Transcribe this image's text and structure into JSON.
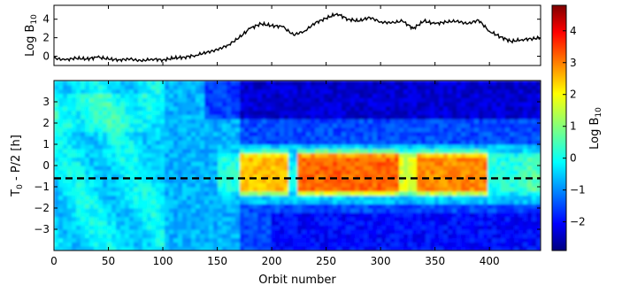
{
  "chart_data": [
    {
      "type": "line",
      "panel": "top",
      "ylabel": "Log B",
      "ylabel_subscript": "10",
      "xlim": [
        0,
        447
      ],
      "ylim": [
        -1,
        5.5
      ],
      "yticks": [
        0,
        2,
        4
      ],
      "ytick_labels": [
        "0",
        "2",
        "4"
      ],
      "color": "#000000",
      "series": [
        {
          "x": [
            0,
            10,
            20,
            30,
            40,
            50,
            60,
            70,
            80,
            90,
            100,
            110,
            120,
            130,
            140,
            150,
            160,
            170,
            180,
            190,
            200,
            210,
            220,
            230,
            240,
            250,
            260,
            270,
            280,
            290,
            300,
            310,
            320,
            330,
            340,
            350,
            360,
            370,
            380,
            390,
            400,
            410,
            420,
            430,
            440,
            447
          ],
          "values": [
            -0.2,
            -0.4,
            -0.2,
            -0.3,
            -0.1,
            -0.3,
            -0.4,
            -0.3,
            -0.5,
            -0.3,
            -0.4,
            -0.2,
            -0.1,
            0.1,
            0.4,
            0.7,
            1.2,
            2.0,
            3.0,
            3.5,
            3.3,
            3.2,
            2.3,
            2.7,
            3.6,
            4.1,
            4.6,
            4.0,
            3.8,
            4.2,
            3.7,
            3.6,
            3.8,
            3.0,
            3.8,
            3.5,
            3.7,
            3.8,
            3.5,
            3.9,
            2.7,
            2.1,
            1.6,
            1.8,
            1.9,
            2.0
          ]
        }
      ]
    },
    {
      "type": "heatmap",
      "panel": "bottom",
      "xlabel": "Orbit number",
      "ylabel": "T",
      "ylabel_subscript": "0",
      "ylabel_suffix": " - P/2 [h]",
      "xlim": [
        0,
        447
      ],
      "ylim": [
        -4,
        4
      ],
      "xticks": [
        0,
        50,
        100,
        150,
        200,
        250,
        300,
        350,
        400
      ],
      "xtick_labels": [
        "0",
        "50",
        "100",
        "150",
        "200",
        "250",
        "300",
        "350",
        "400"
      ],
      "yticks": [
        3,
        2,
        1,
        0,
        -1,
        -2,
        -3
      ],
      "ytick_labels": [
        "3",
        "2",
        "1",
        "0",
        "−1",
        "−2",
        "−3"
      ],
      "reference_line": {
        "y": -0.6,
        "style": "dashed",
        "color": "#000000"
      },
      "colorbar": {
        "label": "Log B",
        "label_subscript": "10",
        "range": [
          -2.9,
          4.8
        ],
        "ticks": [
          4,
          3,
          2,
          1,
          0,
          -1,
          -2
        ],
        "tick_labels": [
          "4",
          "3",
          "2",
          "1",
          "0",
          "−1",
          "−2"
        ],
        "colormap": "jet"
      },
      "grid": false
    }
  ]
}
